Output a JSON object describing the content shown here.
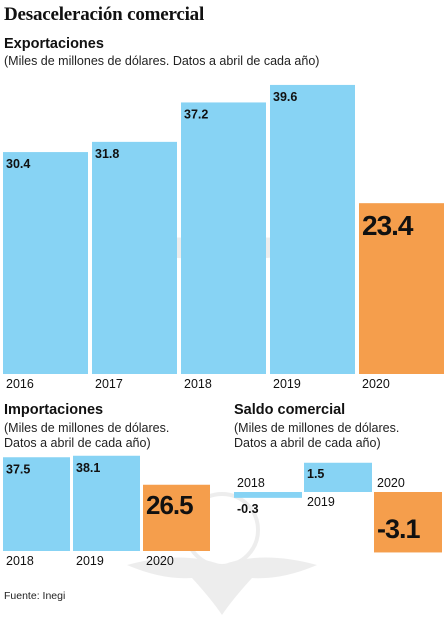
{
  "title": "Desaceleración comercial",
  "source": "Fuente: Inegi",
  "colors": {
    "bar": "#87d3f4",
    "highlight": "#f59e4c",
    "text": "#111111"
  },
  "chart_data": [
    {
      "type": "bar",
      "title": "Exportaciones",
      "subtitle": "(Miles de millones de dólares. Datos a abril de cada año)",
      "categories": [
        "2016",
        "2017",
        "2018",
        "2019",
        "2020"
      ],
      "values": [
        30.4,
        31.8,
        37.2,
        39.6,
        23.4
      ],
      "value_labels": [
        "30.4",
        "31.8",
        "37.2",
        "39.6",
        "23.4"
      ],
      "highlight_index": 4
    },
    {
      "type": "bar",
      "title": "Importaciones",
      "subtitle": [
        "(Miles de millones de dólares.",
        "Datos a abril de cada año)"
      ],
      "categories": [
        "2018",
        "2019",
        "2020"
      ],
      "values": [
        37.5,
        38.1,
        26.5
      ],
      "value_labels": [
        "37.5",
        "38.1",
        "26.5"
      ],
      "highlight_index": 2
    },
    {
      "type": "bar",
      "title": "Saldo comercial",
      "subtitle": [
        "(Miles de millones de dólares.",
        "Datos a abril de cada año)"
      ],
      "categories": [
        "2018",
        "2019",
        "2020"
      ],
      "values": [
        -0.3,
        1.5,
        -3.1
      ],
      "value_labels": [
        "-0.3",
        "1.5",
        "-3.1"
      ],
      "highlight_index": 2
    }
  ]
}
